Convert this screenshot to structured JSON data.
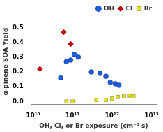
{
  "chart_data": {
    "type": "scatter",
    "xlabel": "OH, Cl, or Br exposure (cm⁻³ s)",
    "ylabel": "α-pinene SOA Yield",
    "log": "x",
    "grid": false,
    "legend": "upper right",
    "xlim": [
      9000000000.0,
      13000000000000.0
    ],
    "xticks": [
      {
        "value": 10000000000.0,
        "label": "10¹⁰"
      },
      {
        "value": 100000000000.0,
        "label": "10¹¹"
      },
      {
        "value": 1000000000000.0,
        "label": "10¹²"
      },
      {
        "value": 10000000000000.0,
        "label": "10¹³"
      }
    ],
    "ylim": [
      -0.02,
      0.56
    ],
    "yticks": [
      {
        "value": 0,
        "label": "0.0"
      },
      0.1,
      0.2,
      0.3,
      0.4,
      0.5
    ],
    "series": [
      {
        "name": "OH",
        "color": "#1a5ce8",
        "marker": "circle",
        "x": [
          50000000000.0,
          70000000000.0,
          90000000000.0,
          110000000000.0,
          140000000000.0,
          300000000000.0,
          500000000000.0,
          700000000000.0,
          900000000000.0,
          1200000000000.0,
          1500000000000.0
        ],
        "values": [
          0.16,
          0.27,
          0.28,
          0.32,
          0.3,
          0.2,
          0.19,
          0.17,
          0.13,
          0.12,
          0.11
        ]
      },
      {
        "name": "Cl",
        "color": "#cc0000",
        "marker": "diamond",
        "x": [
          15000000000.0,
          60000000000.0,
          90000000000.0
        ],
        "values": [
          0.22,
          0.47,
          0.39
        ]
      },
      {
        "name": "Br",
        "color": "#e8e800",
        "marker": "square",
        "x": [
          70000000000.0,
          100000000000.0,
          400000000000.0,
          700000000000.0,
          1000000000000.0,
          1400000000000.0,
          2000000000000.0,
          2800000000000.0,
          3500000000000.0
        ],
        "values": [
          0.0,
          0.0,
          0.01,
          0.01,
          0.02,
          0.03,
          0.035,
          0.04,
          0.035
        ]
      }
    ]
  }
}
